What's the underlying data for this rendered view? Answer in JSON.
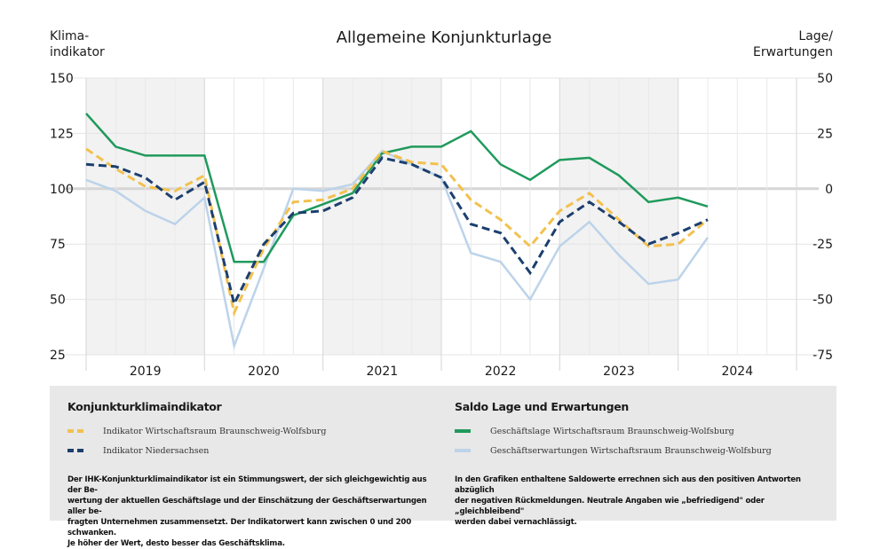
{
  "chart_data": {
    "type": "line",
    "title": "Allgemeine Konjunkturlage",
    "left_axis": {
      "label": "Klima-\nindikator",
      "label_lines": [
        "Klima-",
        "indikator"
      ],
      "ylim": [
        25,
        150
      ],
      "ticks": [
        150,
        125,
        100,
        75,
        50,
        25
      ]
    },
    "right_axis": {
      "label": "Lage/\nErwartungen",
      "label_lines": [
        "Lage/",
        "Erwartungen"
      ],
      "ylim": [
        -75,
        50
      ],
      "ticks": [
        50,
        25,
        0,
        -25,
        -50,
        -75
      ]
    },
    "x_years": [
      "2019",
      "2020",
      "2021",
      "2022",
      "2023",
      "2024"
    ],
    "shaded_years": [
      "2019",
      "2021",
      "2023"
    ],
    "quarters_per_year": 4,
    "grid": true,
    "reference_line": {
      "left_value": 100,
      "right_value": 0
    },
    "x_points": [
      "2019 Q1",
      "2019 Q2",
      "2019 Q3",
      "2019 Q4",
      "2020 Q1",
      "2020 Q2",
      "2020 Q3",
      "2020 Q4",
      "2021 Q1",
      "2021 Q2",
      "2021 Q3",
      "2021 Q4",
      "2022 Q1",
      "2022 Q2",
      "2022 Q3",
      "2022 Q4",
      "2023 Q1",
      "2023 Q2",
      "2023 Q3",
      "2023 Q4",
      "2024 Q1",
      "2024 Q2"
    ],
    "series": [
      {
        "name": "Geschäftslage Wirtschaftsraum Braunschweig-Wolfsburg",
        "axis": "right",
        "style": "solid",
        "color": "#1f9a5c",
        "values": [
          34,
          19,
          15,
          15,
          15,
          -33,
          -33,
          -12,
          -7,
          -2,
          16,
          19,
          19,
          26,
          11,
          4,
          13,
          14,
          6,
          -6,
          -4,
          -8
        ]
      },
      {
        "name": "Geschäftserwartungen Wirtschaftsraum Braunschweig-Wolfsburg",
        "axis": "right",
        "style": "solid",
        "color": "#bcd3ea",
        "values": [
          4,
          -1,
          -10,
          -16,
          -4,
          -71,
          -36,
          0,
          -1,
          2,
          17,
          11,
          5,
          -29,
          -33,
          -50,
          -26,
          -15,
          -30,
          -43,
          -41,
          -22
        ]
      },
      {
        "name": "Indikator Wirtschaftsraum Braunschweig-Wolfsburg",
        "axis": "left",
        "style": "dashed",
        "color": "#f2c14e",
        "values": [
          118,
          109,
          101,
          99,
          106,
          44,
          73,
          94,
          95,
          100,
          117,
          112,
          111,
          95,
          86,
          74,
          90,
          98,
          86,
          74,
          75,
          86
        ]
      },
      {
        "name": "Indikator Niedersachsen",
        "axis": "left",
        "style": "dashed",
        "color": "#1c3f6e",
        "values": [
          111,
          110,
          105,
          95,
          103,
          48,
          75,
          89,
          90,
          96,
          114,
          111,
          105,
          84,
          80,
          62,
          85,
          94,
          85,
          75,
          80,
          86
        ]
      }
    ]
  },
  "legend": {
    "left": {
      "heading": "Konjunkturklimaindikator",
      "items": [
        {
          "label": "Indikator Wirtschaftsraum Braunschweig-Wolfsburg",
          "color": "#f2c14e",
          "style": "dashed"
        },
        {
          "label": "Indikator Niedersachsen",
          "color": "#1c3f6e",
          "style": "dashed"
        }
      ],
      "note": "Der IHK-Konjunkturklimaindikator ist ein Stimmungswert, der sich gleichgewichtig aus der Be-\nwertung der aktuellen Geschäftslage und der Einschätzung der Geschäftserwartungen aller be-\nfragten Unternehmen zusammensetzt. Der Indikatorwert kann zwischen 0 und 200 schwanken.\nJe höher der Wert, desto besser das Geschäftsklima."
    },
    "right": {
      "heading": "Saldo Lage und Erwartungen",
      "items": [
        {
          "label": "Geschäftslage Wirtschaftsraum Braunschweig-Wolfsburg",
          "color": "#1f9a5c",
          "style": "solid"
        },
        {
          "label": "Geschäftserwartungen Wirtschaftsraum Braunschweig-Wolfsburg",
          "color": "#bcd3ea",
          "style": "solid"
        }
      ],
      "note": "In den Grafiken enthaltene Saldowerte errechnen sich aus den positiven Antworten abzüglich\nder negativen Rückmeldungen. Neutrale Angaben wie „befriedigend\" oder „gleichbleibend\"\nwerden dabei vernachlässigt."
    }
  },
  "colors": {
    "shade": "#f2f2f2",
    "grid": "#e4e4e4",
    "reference": "#d6d6d6",
    "legend_bg": "#e8e8e8"
  }
}
